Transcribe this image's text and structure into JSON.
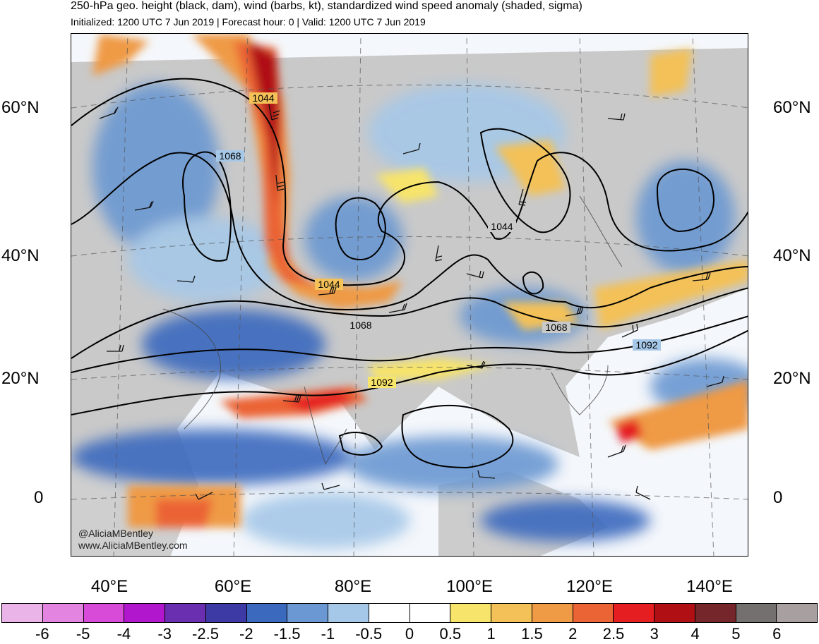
{
  "header": {
    "title": "250-hPa geo. height (black, dam), wind (barbs, kt), standardized wind speed anomaly (shaded, sigma)",
    "subtitle": "Initialized: 1200 UTC 7 Jun 2019 | Forecast hour: 0 | Valid: 1200 UTC 7 Jun 2019"
  },
  "map": {
    "lat_labels": [
      "60°N",
      "40°N",
      "20°N",
      "0"
    ],
    "lon_labels": [
      "40°E",
      "60°E",
      "80°E",
      "100°E",
      "120°E",
      "140°E"
    ],
    "contour_labels": [
      "1044",
      "1068",
      "1044",
      "1044",
      "1068",
      "1068",
      "1092",
      "1092"
    ],
    "credit_line1": "@AliciaMBentley",
    "credit_line2": "www.AliciaMBentley.com"
  },
  "colorbar": {
    "colors": [
      "#eab4e8",
      "#e284e0",
      "#d84bd8",
      "#b118ce",
      "#6a2fb0",
      "#3e3aa5",
      "#3b69be",
      "#6b98d2",
      "#a6c8e8",
      "#ffffff",
      "#ffffff",
      "#f7e46a",
      "#f3c158",
      "#ef9a45",
      "#eb6436",
      "#e51e22",
      "#b00f13",
      "#74262a",
      "#757070",
      "#a8a0a0"
    ],
    "ticks": [
      "-6",
      "-5",
      "-4",
      "-3",
      "-2.5",
      "-2",
      "-1.5",
      "-1",
      "-0.5",
      "0",
      "0.5",
      "1",
      "1.5",
      "2",
      "2.5",
      "3",
      "4",
      "5",
      "6"
    ]
  }
}
